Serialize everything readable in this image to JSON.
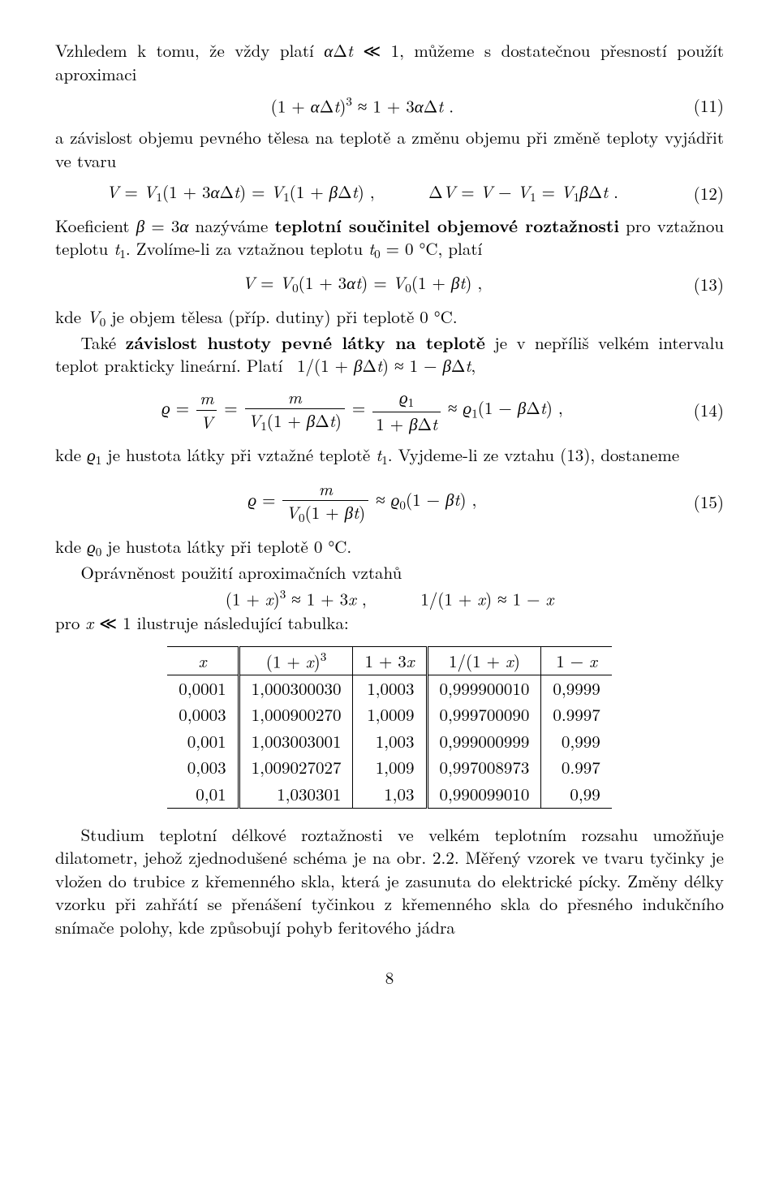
{
  "p1a": "Vzhledem k tomu, že vždy platí ",
  "p1b": ", můžeme s dostatečnou přesností použít aproximaci",
  "eq11": {
    "body": "(1 + αΔt)³ ≈ 1 + 3αΔt .",
    "num": "(11)"
  },
  "p2": "a závislost objemu pevného tělesa na teplotě a změnu objemu při změně teploty vyjádřit ve tvaru",
  "eq12": {
    "left": "V = V₁(1 + 3αΔt) = V₁(1 + βΔt) ,",
    "right": "ΔV = V − V₁ = V₁βΔt .",
    "num": "(12)"
  },
  "p3a": "Koeficient ",
  "p3b": " nazýváme ",
  "p3term": "teplotní součinitel objemové roztažnosti",
  "p3c": " pro vztažnou teplotu ",
  "p3d": ". Zvolíme-li za vztažnou teplotu ",
  "p3e": ", platí",
  "eq13": {
    "body": "V = V₀(1 + 3αt) = V₀(1 + βt) ,",
    "num": "(13)"
  },
  "p4a": "kde ",
  "p4b": " je objem tělesa (příp. dutiny) při teplotě 0 °C.",
  "p5a": "Také ",
  "p5term": "závislost hustoty pevné látky na teplotě",
  "p5b": " je v nepříliš velkém intervalu teplot prakticky lineární. Platí  1/(1 + βΔt) ≈ 1 − βΔt,",
  "eq14": {
    "num": "(14)"
  },
  "p6a": "kde ",
  "p6b": " je hustota látky při vztažné teplotě ",
  "p6c": ". Vyjdeme-li ze vztahu (13), dostaneme",
  "eq15": {
    "num": "(15)"
  },
  "p7a": "kde ",
  "p7b": " je hustota látky při teplotě 0 °C.",
  "p8": "Oprávněnost použití aproximačních vztahů",
  "approxline": {
    "left": "(1 + x)³ ≈ 1 + 3x ,",
    "right": "1/(1 + x) ≈ 1 − x"
  },
  "p9a": "pro ",
  "p9b": " ilustruje následující tabulka:",
  "table": {
    "headers": [
      "x",
      "(1 + x)³",
      "1 + 3x",
      "1/(1 + x)",
      "1 − x"
    ],
    "rows": [
      [
        "0,0001",
        "1,000300030",
        "1,0003",
        "0,999900010",
        "0,9999"
      ],
      [
        "0,0003",
        "1,000900270",
        "1,0009",
        "0,999700090",
        "0.9997"
      ],
      [
        "0,001",
        "1,003003001",
        "1,003",
        "0,999000999",
        "0,999"
      ],
      [
        "0,003",
        "1,009027027",
        "1,009",
        "0,997008973",
        "0.997"
      ],
      [
        "0,01",
        "1,030301",
        "1,03",
        "0,990099010",
        "0,99"
      ]
    ]
  },
  "p10": "Studium teplotní délkové roztažnosti ve velkém teplotním rozsahu umožňuje dilatometr, jehož zjednodušené schéma je na obr. 2.2. Měřený vzorek ve tvaru tyčinky je vložen do trubice z křemenného skla, která je zasunuta do elektrické pícky. Změny délky vzorku při zahřátí se přenášení tyčinkou z křemenného skla do přesného indukčního snímače polohy, kde způsobují pohyb feritového jádra",
  "pagenum": "8"
}
